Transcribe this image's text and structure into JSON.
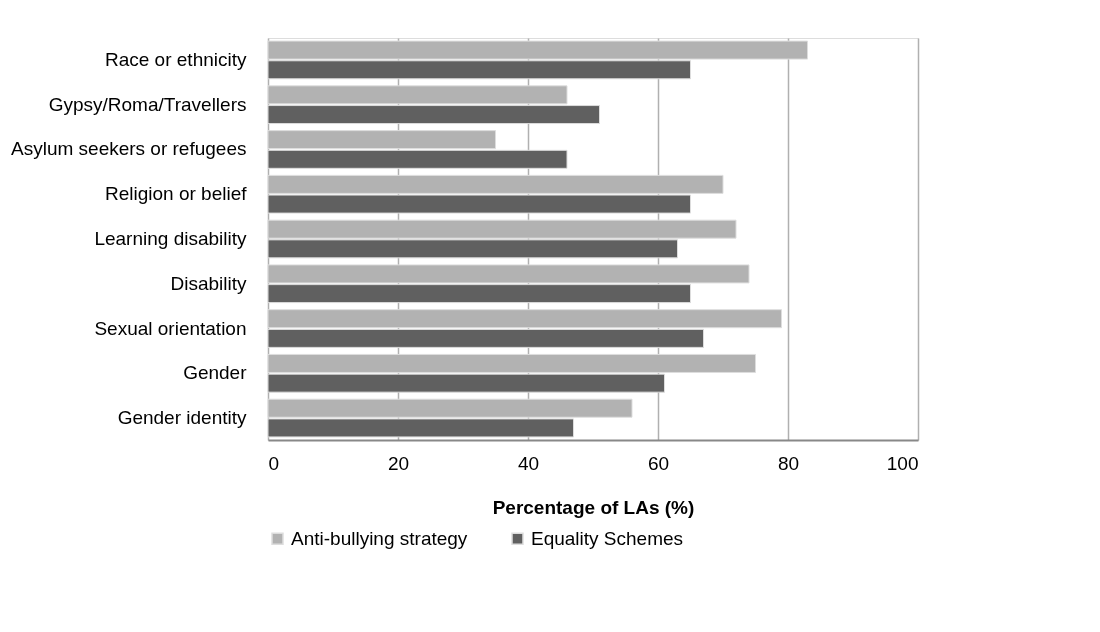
{
  "chart_data": {
    "type": "bar",
    "orientation": "horizontal",
    "xlabel": "Percentage of LAs (%)",
    "categories": [
      "Race or ethnicity",
      "Gypsy/Roma/Travellers",
      "Asylum seekers or refugees",
      "Religion or belief",
      "Learning disability",
      "Disability",
      "Sexual orientation",
      "Gender ",
      "Gender identity"
    ],
    "series": [
      {
        "name": "Anti-bullying strategy",
        "color": "#b2b2b2",
        "values": [
          83,
          46,
          35,
          70,
          72,
          74,
          79,
          75,
          56
        ]
      },
      {
        "name": "Equality Schemes",
        "color": "#606060",
        "values": [
          65,
          51,
          46,
          65,
          63,
          65,
          67,
          61,
          47
        ]
      }
    ],
    "xlim": [
      0,
      100
    ],
    "xticks": [
      0,
      20,
      40,
      60,
      80,
      100
    ],
    "grid": "x",
    "legend": "bottom"
  }
}
